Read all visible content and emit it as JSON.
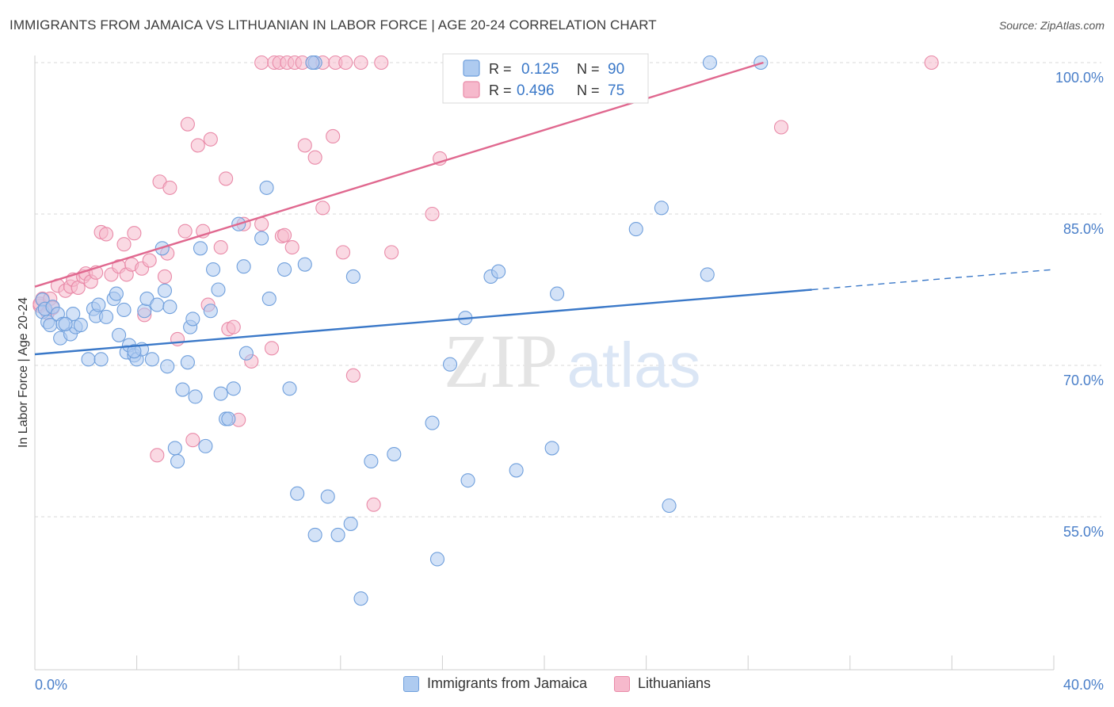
{
  "title": "IMMIGRANTS FROM JAMAICA VS LITHUANIAN IN LABOR FORCE | AGE 20-24 CORRELATION CHART",
  "source": "Source: ZipAtlas.com",
  "watermark": {
    "zip": "ZIP",
    "atlas": "atlas"
  },
  "colors": {
    "blue_fill": "#aecbf0",
    "blue_stroke": "#6f9fdc",
    "blue_line": "#3a78c8",
    "pink_fill": "#f6b9cc",
    "pink_stroke": "#e98aa8",
    "pink_line": "#e0688f",
    "axis_label": "#4a7fc9",
    "grid": "#d9d9d9"
  },
  "legend_top": [
    {
      "r_label": "R =",
      "r_value": "0.125",
      "n_label": "N =",
      "n_value": "90"
    },
    {
      "r_label": "R =",
      "r_value": "0.496",
      "n_label": "N =",
      "n_value": "75"
    }
  ],
  "chart_data": {
    "type": "scatter",
    "title": "IMMIGRANTS FROM JAMAICA VS LITHUANIAN IN LABOR FORCE | AGE 20-24 CORRELATION CHART",
    "xlabel": "",
    "ylabel": "In Labor Force | Age 20-24",
    "xlim": [
      0,
      40
    ],
    "ylim": [
      40,
      102
    ],
    "x_tick_labels": [
      "0.0%",
      "40.0%"
    ],
    "y_ticks": [
      55,
      70,
      85,
      100
    ],
    "y_tick_labels": [
      "55.0%",
      "70.0%",
      "85.0%",
      "100.0%"
    ],
    "series": [
      {
        "name": "Immigrants from Jamaica",
        "color": "blue",
        "trend": {
          "x": [
            0,
            30.5
          ],
          "y": [
            71.1,
            77.5
          ],
          "dashed_to": {
            "x": 40,
            "y": 79.5
          }
        },
        "points": [
          [
            0.3,
            76.5
          ],
          [
            0.3,
            75.3
          ],
          [
            0.4,
            75.6
          ],
          [
            0.5,
            74.3
          ],
          [
            0.6,
            74.0
          ],
          [
            0.7,
            75.8
          ],
          [
            0.9,
            75.1
          ],
          [
            1.0,
            72.7
          ],
          [
            1.1,
            74.1
          ],
          [
            1.4,
            73.1
          ],
          [
            1.5,
            75.1
          ],
          [
            1.6,
            73.8
          ],
          [
            1.8,
            74.0
          ],
          [
            2.1,
            70.6
          ],
          [
            2.3,
            75.6
          ],
          [
            2.4,
            74.9
          ],
          [
            2.5,
            76.0
          ],
          [
            2.6,
            70.6
          ],
          [
            2.8,
            74.8
          ],
          [
            3.1,
            76.6
          ],
          [
            3.2,
            77.1
          ],
          [
            3.3,
            73.0
          ],
          [
            3.5,
            75.5
          ],
          [
            3.6,
            71.3
          ],
          [
            3.7,
            72.0
          ],
          [
            3.9,
            71.0
          ],
          [
            4.0,
            70.6
          ],
          [
            4.2,
            71.6
          ],
          [
            4.3,
            75.4
          ],
          [
            4.4,
            76.6
          ],
          [
            4.6,
            70.6
          ],
          [
            4.8,
            76.0
          ],
          [
            5.0,
            81.6
          ],
          [
            5.1,
            77.4
          ],
          [
            5.2,
            69.9
          ],
          [
            5.3,
            75.8
          ],
          [
            5.5,
            61.8
          ],
          [
            5.6,
            60.5
          ],
          [
            5.8,
            67.6
          ],
          [
            6.0,
            70.3
          ],
          [
            6.1,
            73.8
          ],
          [
            6.2,
            74.6
          ],
          [
            6.3,
            66.9
          ],
          [
            6.5,
            81.6
          ],
          [
            6.7,
            62.0
          ],
          [
            6.9,
            75.4
          ],
          [
            7.0,
            79.5
          ],
          [
            7.2,
            77.5
          ],
          [
            7.3,
            67.2
          ],
          [
            7.5,
            64.7
          ],
          [
            7.6,
            64.7
          ],
          [
            7.8,
            67.7
          ],
          [
            8.0,
            84.0
          ],
          [
            8.2,
            79.8
          ],
          [
            8.3,
            71.2
          ],
          [
            8.9,
            82.6
          ],
          [
            9.1,
            87.6
          ],
          [
            9.2,
            76.6
          ],
          [
            9.8,
            79.5
          ],
          [
            10.0,
            67.7
          ],
          [
            10.3,
            57.3
          ],
          [
            10.6,
            80.0
          ],
          [
            11.0,
            53.2
          ],
          [
            11.5,
            57.0
          ],
          [
            11.9,
            53.2
          ],
          [
            12.4,
            54.3
          ],
          [
            12.5,
            78.8
          ],
          [
            12.8,
            46.9
          ],
          [
            13.2,
            60.5
          ],
          [
            14.1,
            61.2
          ],
          [
            15.6,
            64.3
          ],
          [
            15.8,
            50.8
          ],
          [
            16.3,
            70.1
          ],
          [
            16.9,
            74.7
          ],
          [
            17.0,
            58.6
          ],
          [
            17.9,
            78.8
          ],
          [
            18.2,
            79.3
          ],
          [
            18.9,
            59.6
          ],
          [
            20.3,
            61.8
          ],
          [
            20.5,
            77.1
          ],
          [
            23.6,
            83.5
          ],
          [
            24.6,
            85.6
          ],
          [
            24.9,
            56.1
          ],
          [
            26.4,
            79.0
          ],
          [
            11.0,
            100.0
          ],
          [
            10.9,
            100.0
          ],
          [
            26.5,
            100.0
          ],
          [
            28.5,
            100.0
          ],
          [
            3.9,
            71.4
          ],
          [
            1.2,
            74.1
          ]
        ]
      },
      {
        "name": "Lithuanians",
        "color": "pink",
        "trend": {
          "x": [
            0,
            28.6
          ],
          "y": [
            77.8,
            100.0
          ]
        },
        "points": [
          [
            0.2,
            75.9
          ],
          [
            0.2,
            76.1
          ],
          [
            0.3,
            76.6
          ],
          [
            0.5,
            75.2
          ],
          [
            0.6,
            76.6
          ],
          [
            0.7,
            75.7
          ],
          [
            0.9,
            77.9
          ],
          [
            1.2,
            77.4
          ],
          [
            1.4,
            77.8
          ],
          [
            1.5,
            78.5
          ],
          [
            1.7,
            77.7
          ],
          [
            1.9,
            78.8
          ],
          [
            2.0,
            79.1
          ],
          [
            2.2,
            78.3
          ],
          [
            2.4,
            79.2
          ],
          [
            2.6,
            83.2
          ],
          [
            2.8,
            83.0
          ],
          [
            3.0,
            79.0
          ],
          [
            3.3,
            79.8
          ],
          [
            3.5,
            82.0
          ],
          [
            3.6,
            79.0
          ],
          [
            3.8,
            80.0
          ],
          [
            3.9,
            83.1
          ],
          [
            4.2,
            79.6
          ],
          [
            4.3,
            75.0
          ],
          [
            4.5,
            80.4
          ],
          [
            4.8,
            61.1
          ],
          [
            4.9,
            88.2
          ],
          [
            5.1,
            78.8
          ],
          [
            5.2,
            81.1
          ],
          [
            5.3,
            87.6
          ],
          [
            5.6,
            72.6
          ],
          [
            5.9,
            83.3
          ],
          [
            6.0,
            93.9
          ],
          [
            6.2,
            62.6
          ],
          [
            6.4,
            91.8
          ],
          [
            6.6,
            83.3
          ],
          [
            6.8,
            76.0
          ],
          [
            6.9,
            92.4
          ],
          [
            7.3,
            81.7
          ],
          [
            7.5,
            88.5
          ],
          [
            7.6,
            73.6
          ],
          [
            7.8,
            73.8
          ],
          [
            8.0,
            64.6
          ],
          [
            8.2,
            84.0
          ],
          [
            8.5,
            70.4
          ],
          [
            8.9,
            84.0
          ],
          [
            9.3,
            71.7
          ],
          [
            9.7,
            82.8
          ],
          [
            9.8,
            82.9
          ],
          [
            10.1,
            81.7
          ],
          [
            10.6,
            91.8
          ],
          [
            11.0,
            90.6
          ],
          [
            11.3,
            85.6
          ],
          [
            11.7,
            92.7
          ],
          [
            12.1,
            81.2
          ],
          [
            12.5,
            69.0
          ],
          [
            13.3,
            56.2
          ],
          [
            14.0,
            81.2
          ],
          [
            15.6,
            85.0
          ],
          [
            15.9,
            90.5
          ],
          [
            29.3,
            93.6
          ],
          [
            8.9,
            100.0
          ],
          [
            9.4,
            100.0
          ],
          [
            9.6,
            100.0
          ],
          [
            9.9,
            100.0
          ],
          [
            10.2,
            100.0
          ],
          [
            10.5,
            100.0
          ],
          [
            10.9,
            100.0
          ],
          [
            11.3,
            100.0
          ],
          [
            11.8,
            100.0
          ],
          [
            12.2,
            100.0
          ],
          [
            12.8,
            100.0
          ],
          [
            13.6,
            100.0
          ],
          [
            35.2,
            100.0
          ]
        ]
      }
    ]
  }
}
